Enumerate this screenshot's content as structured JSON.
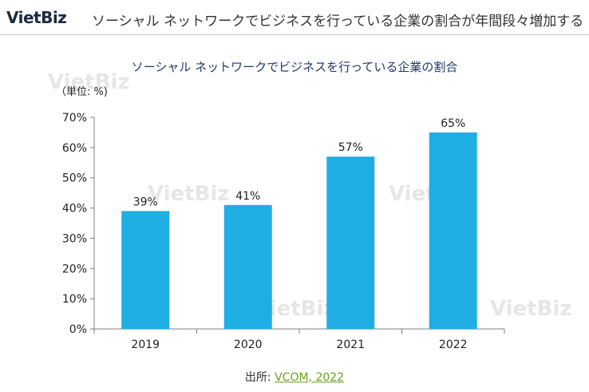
{
  "header": {
    "logo": "VietBiz",
    "title": "ソーシャル ネットワークでビジネスを行っている企業の割合が年間段々増加する"
  },
  "unit_label": "（単位: %)",
  "watermark_text": "VietBiz",
  "source": {
    "label": "出所:",
    "link_text": "VCOM, 2022"
  },
  "colors": {
    "bar": "#1eaee4",
    "title": "#1f3b6b",
    "source_link": "#6aa121"
  },
  "chart_data": {
    "type": "bar",
    "title": "ソーシャル ネットワークでビジネスを行っている企業の割合",
    "categories": [
      "2019",
      "2020",
      "2021",
      "2022"
    ],
    "values": [
      39,
      41,
      57,
      65
    ],
    "value_labels": [
      "39%",
      "41%",
      "57%",
      "65%"
    ],
    "y_ticks": [
      "0%",
      "10%",
      "20%",
      "30%",
      "40%",
      "50%",
      "60%",
      "70%"
    ],
    "ylim": [
      0,
      70
    ],
    "grid": false,
    "legend": "none"
  }
}
